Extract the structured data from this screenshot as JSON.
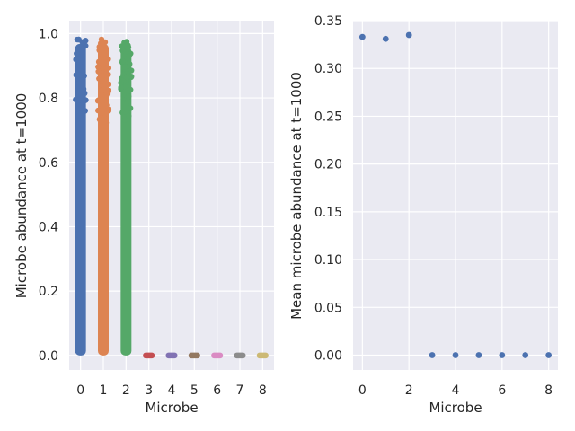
{
  "chart_data": [
    {
      "type": "scatter",
      "style": "strip",
      "xlabel": "Microbe",
      "ylabel": "Microbe abundance at t=1000",
      "categories": [
        "0",
        "1",
        "2",
        "3",
        "4",
        "5",
        "6",
        "7",
        "8"
      ],
      "ylim": [
        -0.045,
        1.04
      ],
      "yticks": [
        0.0,
        0.2,
        0.4,
        0.6,
        0.8,
        1.0
      ],
      "ytick_labels": [
        "0.0",
        "0.2",
        "0.4",
        "0.6",
        "0.8",
        "1.0"
      ],
      "series": [
        {
          "category": "0",
          "min": 0.0,
          "max": 0.99,
          "color": "#4c72b0"
        },
        {
          "category": "1",
          "min": 0.0,
          "max": 0.99,
          "color": "#dd8452"
        },
        {
          "category": "2",
          "min": 0.0,
          "max": 0.98,
          "color": "#55a868"
        },
        {
          "category": "3",
          "min": 0.0,
          "max": 0.0,
          "color": "#c44e52"
        },
        {
          "category": "4",
          "min": 0.0,
          "max": 0.0,
          "color": "#8172b3"
        },
        {
          "category": "5",
          "min": 0.0,
          "max": 0.0,
          "color": "#937860"
        },
        {
          "category": "6",
          "min": 0.0,
          "max": 0.0,
          "color": "#da8bc3"
        },
        {
          "category": "7",
          "min": 0.0,
          "max": 0.0,
          "color": "#8c8c8c"
        },
        {
          "category": "8",
          "min": 0.0,
          "max": 0.0,
          "color": "#ccb974"
        }
      ],
      "grid": true
    },
    {
      "type": "scatter",
      "xlabel": "Microbe",
      "ylabel": "Mean microbe abundance at t=1000",
      "x": [
        0,
        1,
        2,
        3,
        4,
        5,
        6,
        7,
        8
      ],
      "y": [
        0.333,
        0.331,
        0.335,
        0.0,
        0.0,
        0.0,
        0.0,
        0.0,
        0.0
      ],
      "xlim": [
        -0.4,
        8.4
      ],
      "ylim": [
        -0.0155,
        0.35
      ],
      "xticks": [
        0,
        2,
        4,
        6,
        8
      ],
      "xtick_labels": [
        "0",
        "2",
        "4",
        "6",
        "8"
      ],
      "yticks": [
        0.0,
        0.05,
        0.1,
        0.15,
        0.2,
        0.25,
        0.3,
        0.35
      ],
      "ytick_labels": [
        "0.00",
        "0.05",
        "0.10",
        "0.15",
        "0.20",
        "0.25",
        "0.30",
        "0.35"
      ],
      "color": "#4c72b0",
      "grid": true
    }
  ]
}
